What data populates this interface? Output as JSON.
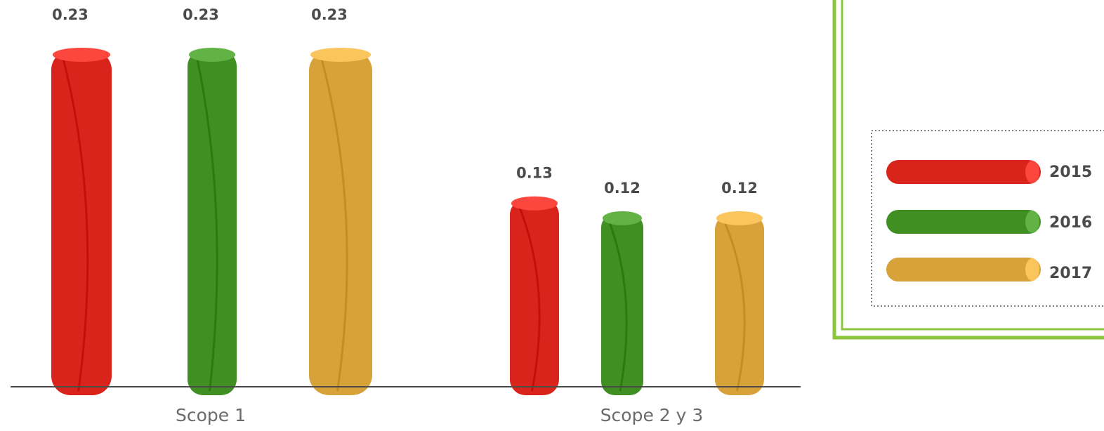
{
  "colors": {
    "2015": "#d8241b",
    "2016": "#3f8f22",
    "2017": "#d8a23a",
    "frame": "#8cc63f",
    "axis": "#4a4a4a"
  },
  "chart_data": {
    "type": "bar",
    "title": "",
    "xlabel": "",
    "ylabel": "",
    "ylim": [
      0,
      0.23
    ],
    "grid": false,
    "legend_position": "right",
    "categories": [
      "Scope 1",
      "Scope 2 y 3"
    ],
    "series": [
      {
        "name": "2015",
        "values": [
          0.23,
          0.13
        ],
        "labels": [
          "0.23",
          "0.13"
        ]
      },
      {
        "name": "2016",
        "values": [
          0.23,
          0.12
        ],
        "labels": [
          "0.23",
          "0.12"
        ]
      },
      {
        "name": "2017",
        "values": [
          0.23,
          0.12
        ],
        "labels": [
          "0.23",
          "0.12"
        ]
      }
    ]
  }
}
